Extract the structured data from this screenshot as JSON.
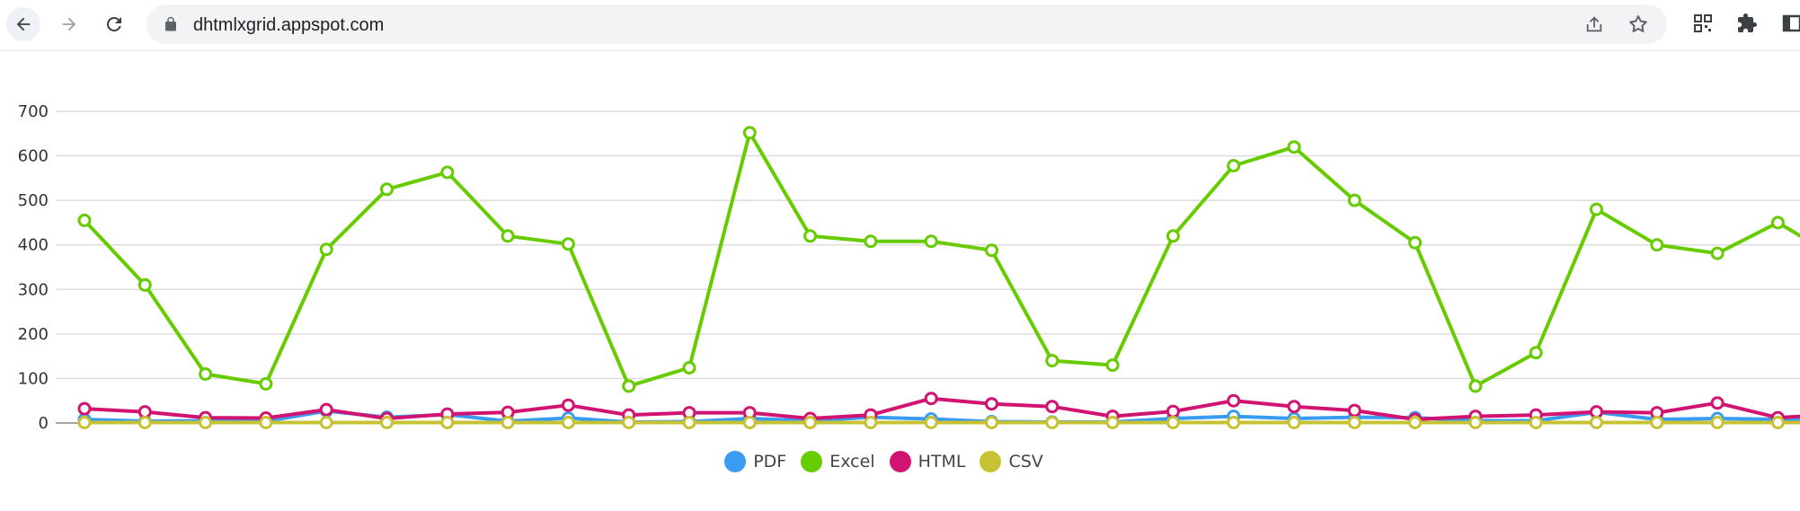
{
  "browser": {
    "url": "dhtmlxgrid.appspot.com",
    "icons": [
      "back-arrow-icon",
      "forward-arrow-icon",
      "reload-icon",
      "lock-icon",
      "share-icon",
      "star-icon",
      "qr-code-icon",
      "puzzle-icon",
      "side-panel-icon"
    ]
  },
  "chart_data": {
    "type": "line",
    "title": "",
    "xlabel": "",
    "ylabel": "",
    "ylim": [
      0,
      700
    ],
    "yticks": [
      0,
      100,
      200,
      300,
      400,
      500,
      600,
      700
    ],
    "grid": "horizontal",
    "legend_position": "bottom-center",
    "x": [
      1,
      2,
      3,
      4,
      5,
      6,
      7,
      8,
      9,
      10,
      11,
      12,
      13,
      14,
      15,
      16,
      17,
      18,
      19,
      20,
      21,
      22,
      23,
      24,
      25,
      26,
      27,
      28,
      29,
      30
    ],
    "series": [
      {
        "name": "PDF",
        "color": "#3a9cf0",
        "values": [
          8,
          4,
          5,
          4,
          27,
          13,
          19,
          4,
          11,
          2,
          3,
          10,
          5,
          13,
          9,
          3,
          2,
          2,
          10,
          15,
          10,
          13,
          12,
          5,
          5,
          24,
          8,
          10,
          8,
          8
        ]
      },
      {
        "name": "Excel",
        "color": "#66cc00",
        "values": [
          455,
          310,
          110,
          88,
          390,
          525,
          563,
          420,
          402,
          83,
          124,
          652,
          420,
          408,
          408,
          388,
          140,
          130,
          420,
          578,
          620,
          500,
          405,
          83,
          158,
          480,
          400,
          381,
          450,
          370
        ]
      },
      {
        "name": "HTML",
        "color": "#d11472",
        "values": [
          32,
          25,
          12,
          11,
          30,
          10,
          20,
          24,
          40,
          18,
          23,
          23,
          10,
          18,
          55,
          43,
          37,
          15,
          26,
          50,
          37,
          28,
          8,
          15,
          18,
          25,
          23,
          45,
          12,
          20
        ]
      },
      {
        "name": "CSV",
        "color": "#c6c234",
        "values": [
          1,
          1,
          1,
          1,
          1,
          1,
          1,
          1,
          1,
          1,
          1,
          1,
          1,
          1,
          1,
          1,
          1,
          1,
          1,
          1,
          1,
          1,
          1,
          1,
          1,
          1,
          1,
          1,
          1,
          1
        ]
      }
    ]
  }
}
